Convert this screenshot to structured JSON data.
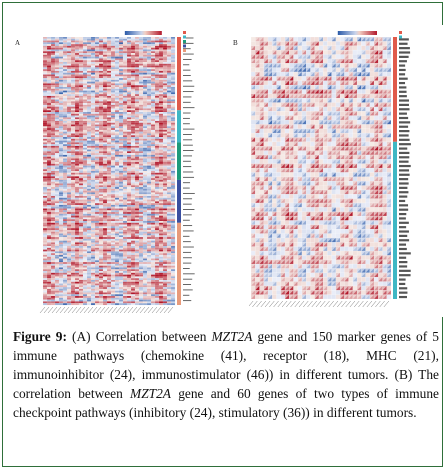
{
  "figure": {
    "label": "Figure 9:",
    "caption_parts": [
      {
        "t": "(A) Correlation between ",
        "i": false
      },
      {
        "t": "MZT2A",
        "i": true
      },
      {
        "t": " gene and 150 marker genes of 5 immune pathways (chemokine (41), receptor (18), MHC (21), immunoinhibitor (24), immunostimulator (46)) in different tumors. (B) The correlation between ",
        "i": false
      },
      {
        "t": "MZT2A",
        "i": true
      },
      {
        "t": " gene and 60 genes of two types of immune checkpoint pathways (inhibitory (24), stimulatory (36)) in different tumors.",
        "i": false
      }
    ]
  },
  "panels": [
    {
      "letter": "A",
      "rows": 150,
      "cols": 33,
      "groups": [
        {
          "name": "chemokine",
          "count": 41,
          "color": "#e05a4b"
        },
        {
          "name": "receptor",
          "count": 18,
          "color": "#3fb7c4"
        },
        {
          "name": "MHC",
          "count": 21,
          "color": "#1e9a7a"
        },
        {
          "name": "immunoinhibitor",
          "count": 24,
          "color": "#3a4fa0"
        },
        {
          "name": "immunostimulator",
          "count": 46,
          "color": "#e89a7a"
        }
      ]
    },
    {
      "letter": "B",
      "rows": 60,
      "cols": 33,
      "groups": [
        {
          "name": "Inhibitory",
          "count": 24,
          "color": "#e05a4b"
        },
        {
          "name": "Stimulatory",
          "count": 36,
          "color": "#3fb7c4"
        }
      ]
    }
  ]
}
